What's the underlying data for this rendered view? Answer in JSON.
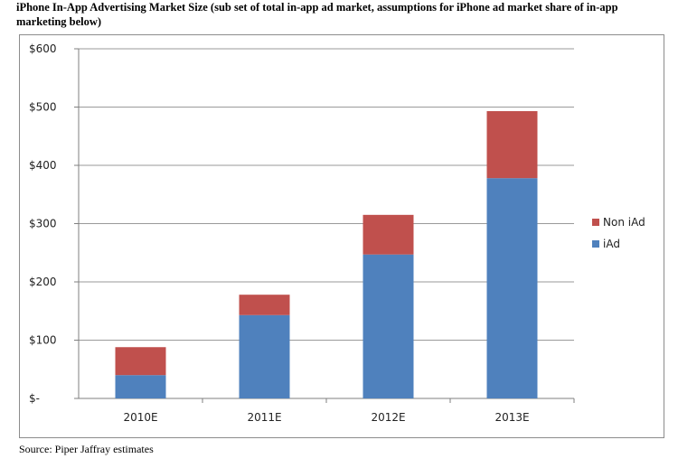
{
  "title": "iPhone In-App Advertising Market Size (sub set of total in-app ad market, assumptions for iPhone ad market share of in-app marketing below)",
  "source": "Source: Piper Jaffray estimates",
  "chart_data": {
    "type": "bar",
    "stacked": true,
    "categories": [
      "2010E",
      "2011E",
      "2012E",
      "2013E"
    ],
    "series": [
      {
        "name": "iAd",
        "color": "#4f81bd",
        "values": [
          40,
          143,
          247,
          378
        ]
      },
      {
        "name": "Non iAd",
        "color": "#c0504d",
        "values": [
          48,
          35,
          68,
          115
        ]
      }
    ],
    "y_ticks": [
      "$-",
      "$100",
      "$200",
      "$300",
      "$400",
      "$500",
      "$600"
    ],
    "ylim": [
      0,
      600
    ],
    "grid": true,
    "legend": "right"
  }
}
